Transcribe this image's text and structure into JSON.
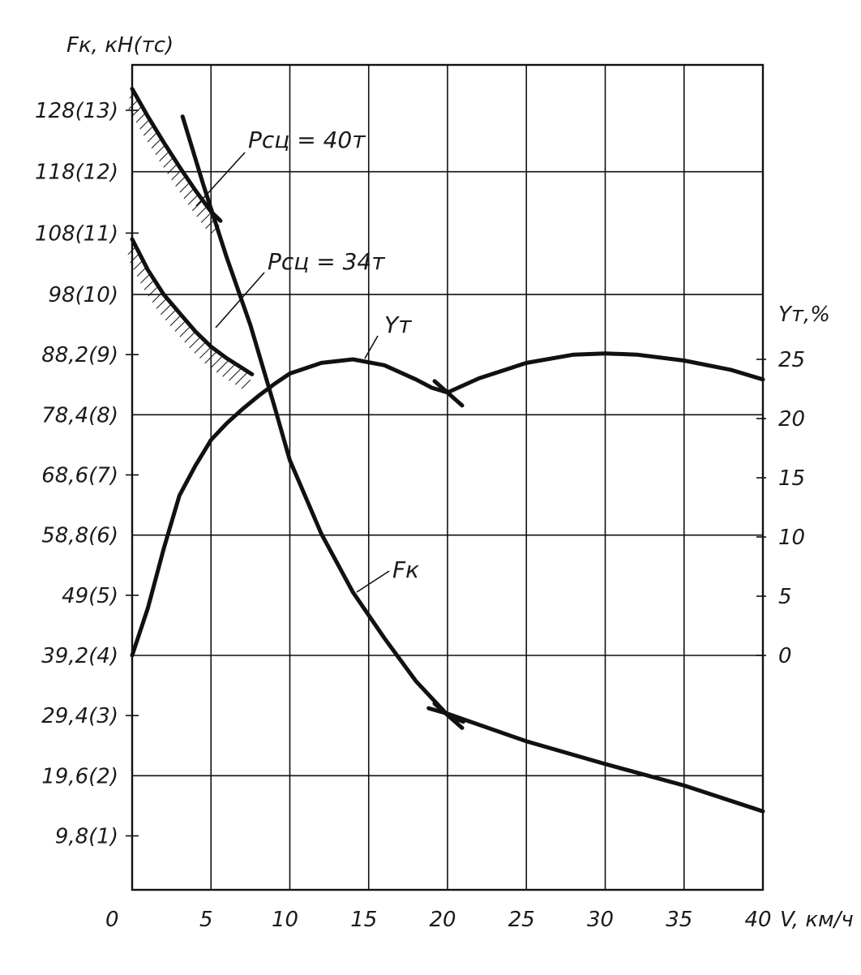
{
  "chart_data": {
    "type": "line",
    "title": "",
    "xlabel": "V, км/ч",
    "ylabel": "Fк, кН(тс)",
    "y2label": "Yт,%",
    "xlim": [
      0,
      40
    ],
    "ylim": [
      0,
      137
    ],
    "y2lim": [
      0,
      25
    ],
    "grid": true,
    "x_ticks": [
      {
        "value": 0,
        "label": "0"
      },
      {
        "value": 5,
        "label": "5"
      },
      {
        "value": 10,
        "label": "10"
      },
      {
        "value": 15,
        "label": "15"
      },
      {
        "value": 20,
        "label": "20"
      },
      {
        "value": 25,
        "label": "25"
      },
      {
        "value": 30,
        "label": "30"
      },
      {
        "value": 35,
        "label": "35"
      },
      {
        "value": 40,
        "label": "40"
      }
    ],
    "y_ticks": [
      {
        "value": 9.8,
        "label": "9,8(1)"
      },
      {
        "value": 19.6,
        "label": "19,6(2)"
      },
      {
        "value": 29.4,
        "label": "29,4(3)"
      },
      {
        "value": 39.2,
        "label": "39,2(4)"
      },
      {
        "value": 49,
        "label": "49(5)"
      },
      {
        "value": 58.8,
        "label": "58,8(6)"
      },
      {
        "value": 68.6,
        "label": "68,6(7)"
      },
      {
        "value": 78.4,
        "label": "78,4(8)"
      },
      {
        "value": 88.2,
        "label": "88,2(9)"
      },
      {
        "value": 98,
        "label": "98(10)"
      },
      {
        "value": 108,
        "label": "108(11)"
      },
      {
        "value": 118,
        "label": "118(12)"
      },
      {
        "value": 128,
        "label": "128(13)"
      }
    ],
    "y2_ticks": [
      {
        "value": 0,
        "label": "0"
      },
      {
        "value": 5,
        "label": "5"
      },
      {
        "value": 10,
        "label": "10"
      },
      {
        "value": 15,
        "label": "15"
      },
      {
        "value": 20,
        "label": "20"
      },
      {
        "value": 25,
        "label": "25"
      }
    ],
    "series": [
      {
        "name": "Fк",
        "axis": "left",
        "x": [
          3.2,
          4.5,
          6,
          7.5,
          9,
          10,
          12,
          14,
          16,
          18,
          20,
          21
        ],
        "y": [
          127,
          116,
          104,
          93,
          80,
          71,
          59,
          49.5,
          42,
          35,
          29.5,
          28.4
        ]
      },
      {
        "name": "Fк",
        "axis": "left",
        "x": [
          18.8,
          20,
          25,
          30,
          35,
          40
        ],
        "y": [
          30.6,
          29.7,
          25.2,
          21.5,
          18.0,
          13.8
        ]
      },
      {
        "name": "Yт",
        "axis": "right",
        "x": [
          0,
          1,
          2,
          3,
          4,
          5,
          6,
          7,
          8,
          9,
          10,
          12,
          14,
          16,
          18,
          19,
          20
        ],
        "y": [
          0,
          4,
          9,
          13.5,
          16,
          18.2,
          19.6,
          20.8,
          21.9,
          22.9,
          23.8,
          24.7,
          25.0,
          24.5,
          23.3,
          22.6,
          22.2
        ]
      },
      {
        "name": "Yт",
        "axis": "right",
        "x": [
          20,
          22,
          25,
          28,
          30,
          32,
          35,
          38,
          40
        ],
        "y": [
          22.2,
          23.4,
          24.7,
          25.4,
          25.5,
          25.4,
          24.9,
          24.1,
          23.3
        ]
      },
      {
        "name": "Pсц = 40т",
        "axis": "left",
        "x": [
          0,
          1,
          2,
          3,
          4,
          5,
          5.6
        ],
        "y": [
          131.5,
          127,
          122.8,
          118.8,
          115,
          111.5,
          110
        ]
      },
      {
        "name": "Pсц = 34т",
        "axis": "left",
        "x": [
          0,
          1,
          2,
          3,
          4,
          5,
          6,
          7.6
        ],
        "y": [
          107,
          102,
          98,
          95,
          92,
          89.5,
          87.6,
          85
        ]
      }
    ],
    "annotations": [
      "Pсц = 40т",
      "Pсц = 34т",
      "Yт",
      "Fк"
    ]
  }
}
